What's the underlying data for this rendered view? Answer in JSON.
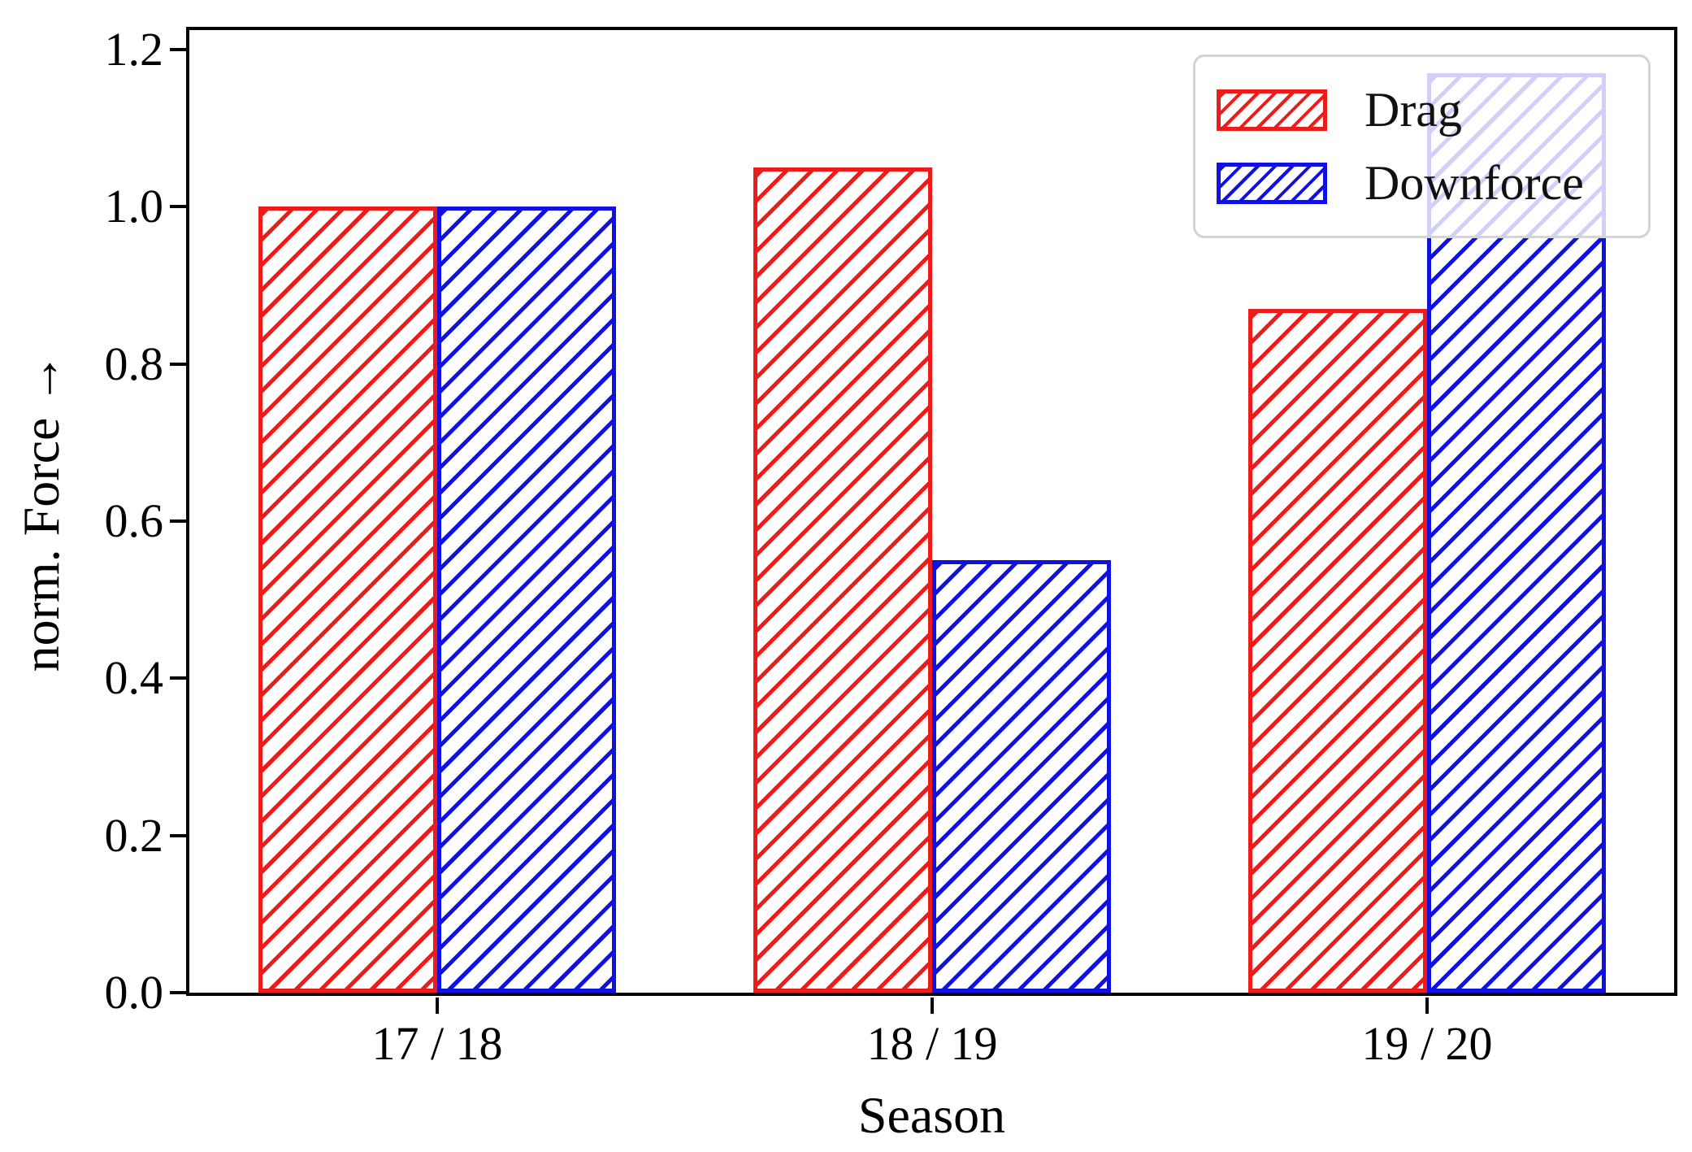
{
  "figure": {
    "background": "#ffffff",
    "frame_color": "#000000",
    "text_color": "#000000"
  },
  "chart_data": {
    "type": "bar",
    "title": "",
    "xlabel": "Season",
    "ylabel": "norm. Force →",
    "categories": [
      "17/18",
      "18/19",
      "19/20"
    ],
    "xtick_labels": [
      "17 / 18",
      "18 / 19",
      "19 / 20"
    ],
    "series": [
      {
        "name": "Drag",
        "color": "#ee1b1b",
        "hatch": "/",
        "values": [
          1.0,
          1.05,
          0.87
        ]
      },
      {
        "name": "Downforce",
        "color": "#1010e0",
        "hatch": "/",
        "values": [
          1.0,
          0.55,
          1.17
        ]
      }
    ],
    "ylim": [
      0,
      1.225
    ],
    "yticks": [
      "0.0",
      "0.2",
      "0.4",
      "0.6",
      "0.8",
      "1.0",
      "1.2"
    ],
    "grid": false,
    "legend": {
      "position": "upper right",
      "entries": [
        "Drag",
        "Downforce"
      ]
    }
  }
}
